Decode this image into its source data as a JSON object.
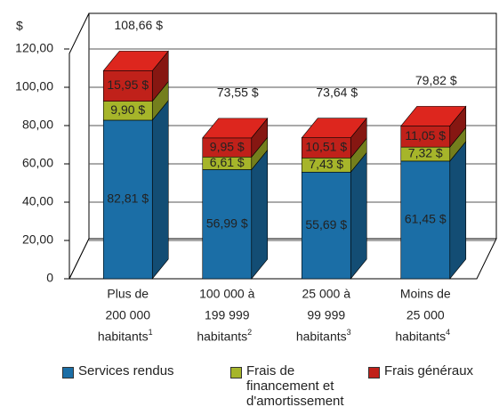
{
  "chart_data": {
    "type": "bar3d_stacked",
    "y_label": "$",
    "categories": [
      [
        "Plus de",
        "200 000",
        "habitants"
      ],
      [
        "100 000 à",
        "199 999",
        "habitants"
      ],
      [
        "25 000 à",
        "99 999",
        "habitants"
      ],
      [
        "Moins de",
        "25 000",
        "habitants"
      ]
    ],
    "category_notes": [
      "1",
      "2",
      "3",
      "4"
    ],
    "series": [
      {
        "name": "Services rendus",
        "color": "#1b6ea6",
        "label_color": "#ffffff",
        "values": [
          82.81,
          56.99,
          55.69,
          61.45
        ],
        "value_labels": [
          "82,81 $",
          "56,99 $",
          "55,69 $",
          "61,45 $"
        ]
      },
      {
        "name": "Frais de financement et d'amortissement",
        "color": "#a6b52a",
        "label_color": "#222222",
        "values": [
          9.9,
          6.61,
          7.43,
          7.32
        ],
        "value_labels": [
          "9,90 $",
          "6,61 $",
          "7,43 $",
          "7,32 $"
        ]
      },
      {
        "name": "Frais généraux",
        "color": "#c0211a",
        "label_color": "#ffffff",
        "values": [
          15.95,
          9.95,
          10.51,
          11.05
        ],
        "value_labels": [
          "15,95 $",
          "9,95 $",
          "10,51 $",
          "11,05 $"
        ]
      }
    ],
    "totals": [
      108.66,
      73.55,
      73.64,
      79.82
    ],
    "total_labels": [
      "108,66 $",
      "73,55 $",
      "73,64 $",
      "79,82 $"
    ],
    "ylim": [
      0,
      120
    ],
    "yticks": [
      0,
      {
        "value": 20,
        "label": "20,00"
      },
      {
        "value": 40,
        "label": "40,00"
      },
      {
        "value": 60,
        "label": "60,00"
      },
      {
        "value": 80,
        "label": "80,00"
      },
      {
        "value": 100,
        "label": "100,00"
      },
      {
        "value": 120,
        "label": "120,00"
      }
    ],
    "grid": true
  }
}
